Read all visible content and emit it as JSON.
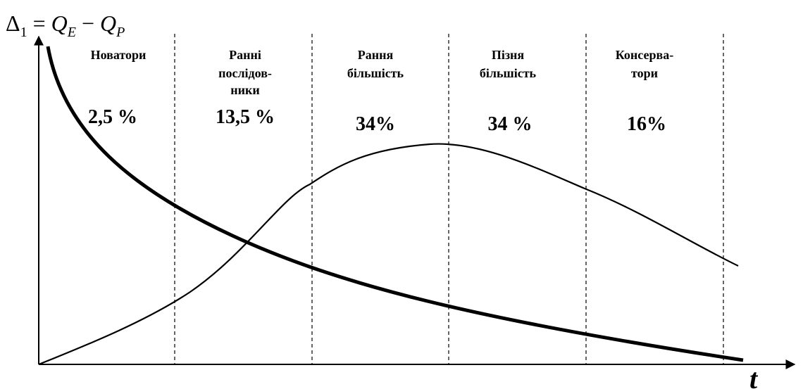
{
  "y_axis": {
    "delta": "Δ",
    "delta_sub": "1",
    "eq": " = ",
    "q1": "Q",
    "q1_sub": "E",
    "minus": " − ",
    "q2": "Q",
    "q2_sub": "P"
  },
  "x_axis": {
    "label": "t"
  },
  "segments": [
    {
      "label_lines": [
        "Новатори"
      ],
      "percent": "2,5 %"
    },
    {
      "label_lines": [
        "Ранні",
        "послідов-",
        "ники"
      ],
      "percent": "13,5 %"
    },
    {
      "label_lines": [
        "Рання",
        "більшість"
      ],
      "percent": "34%"
    },
    {
      "label_lines": [
        "Пізня",
        "більшість"
      ],
      "percent": "34 %"
    },
    {
      "label_lines": [
        "Консерва-",
        "тори"
      ],
      "percent": "16%"
    }
  ]
}
